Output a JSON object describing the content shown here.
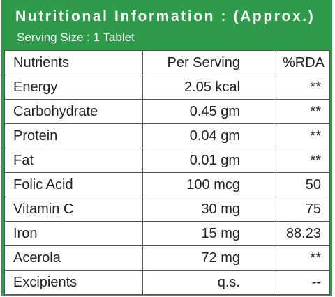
{
  "header": {
    "title": "Nutritional Information : (Approx.)",
    "subtitle": "Serving Size : 1 Tablet"
  },
  "table": {
    "columns": [
      "Nutrients",
      "Per Serving",
      "%RDA"
    ],
    "rows": [
      [
        "Energy",
        "2.05 kcal",
        "**"
      ],
      [
        "Carbohydrate",
        "0.45 gm",
        "**"
      ],
      [
        "Protein",
        "0.04 gm",
        "**"
      ],
      [
        "Fat",
        "0.01 gm",
        "**"
      ],
      [
        "Folic Acid",
        "100 mcg",
        "50"
      ],
      [
        "Vitamin C",
        "30 mg",
        "75"
      ],
      [
        "Iron",
        "15 mg",
        "88.23"
      ],
      [
        "Acerola",
        "72 mg",
        "**"
      ],
      [
        "Excipients",
        "q.s.",
        "--"
      ]
    ]
  }
}
